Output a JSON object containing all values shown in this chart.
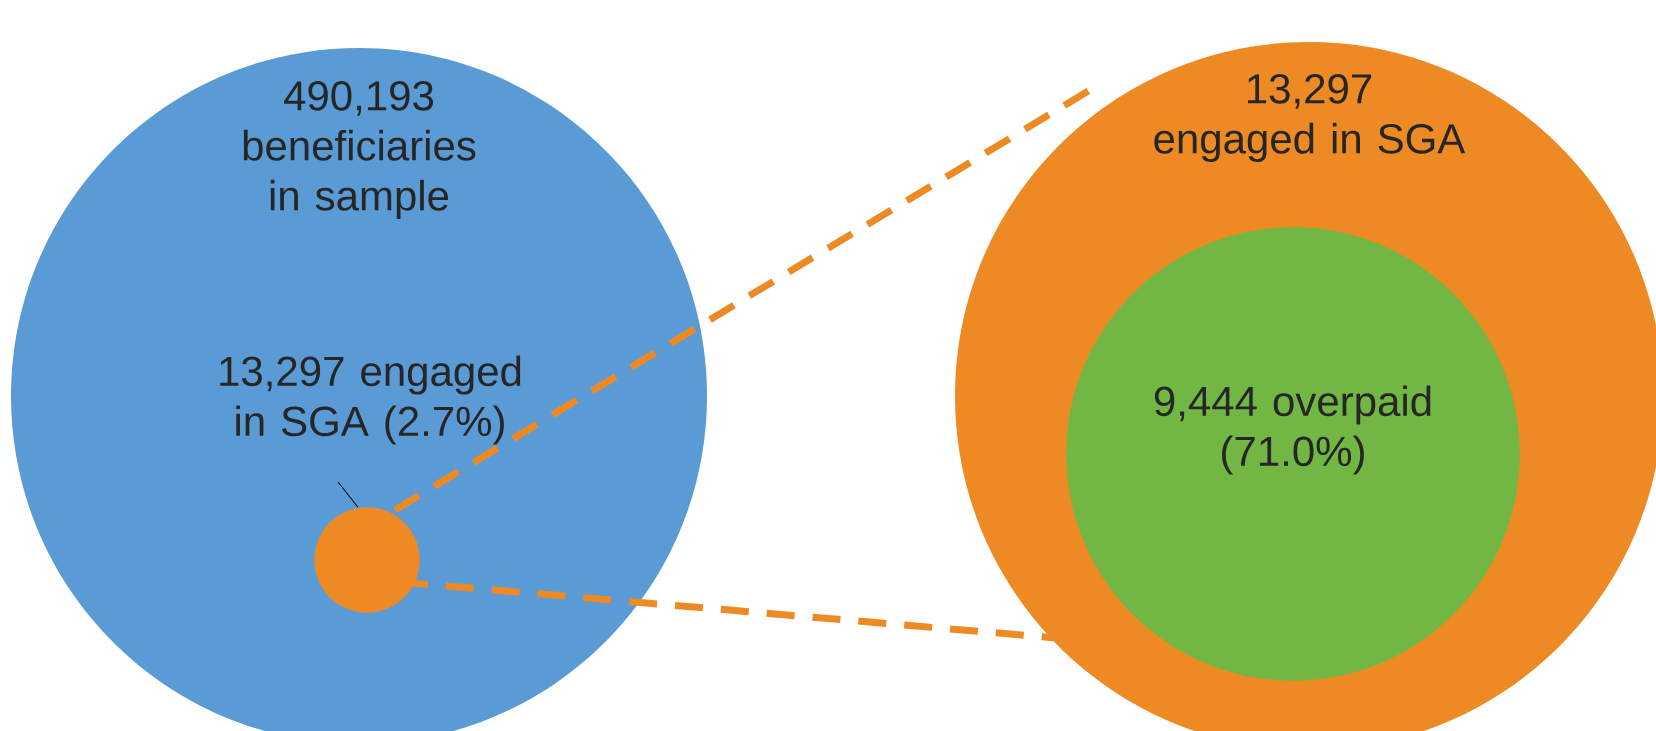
{
  "chart_data": {
    "type": "other",
    "categories": [
      "beneficiaries in sample",
      "engaged in SGA (2.7%)",
      "engaged in SGA",
      "overpaid (71.0%)"
    ],
    "values": [
      490193,
      13297,
      13297,
      9444
    ],
    "value_labels": [
      "490,193",
      "13,297",
      "13,297",
      "9,444"
    ],
    "colors": [
      "#5b9bd5",
      "#ed8a24",
      "#ed8a24",
      "#72b743"
    ]
  }
}
